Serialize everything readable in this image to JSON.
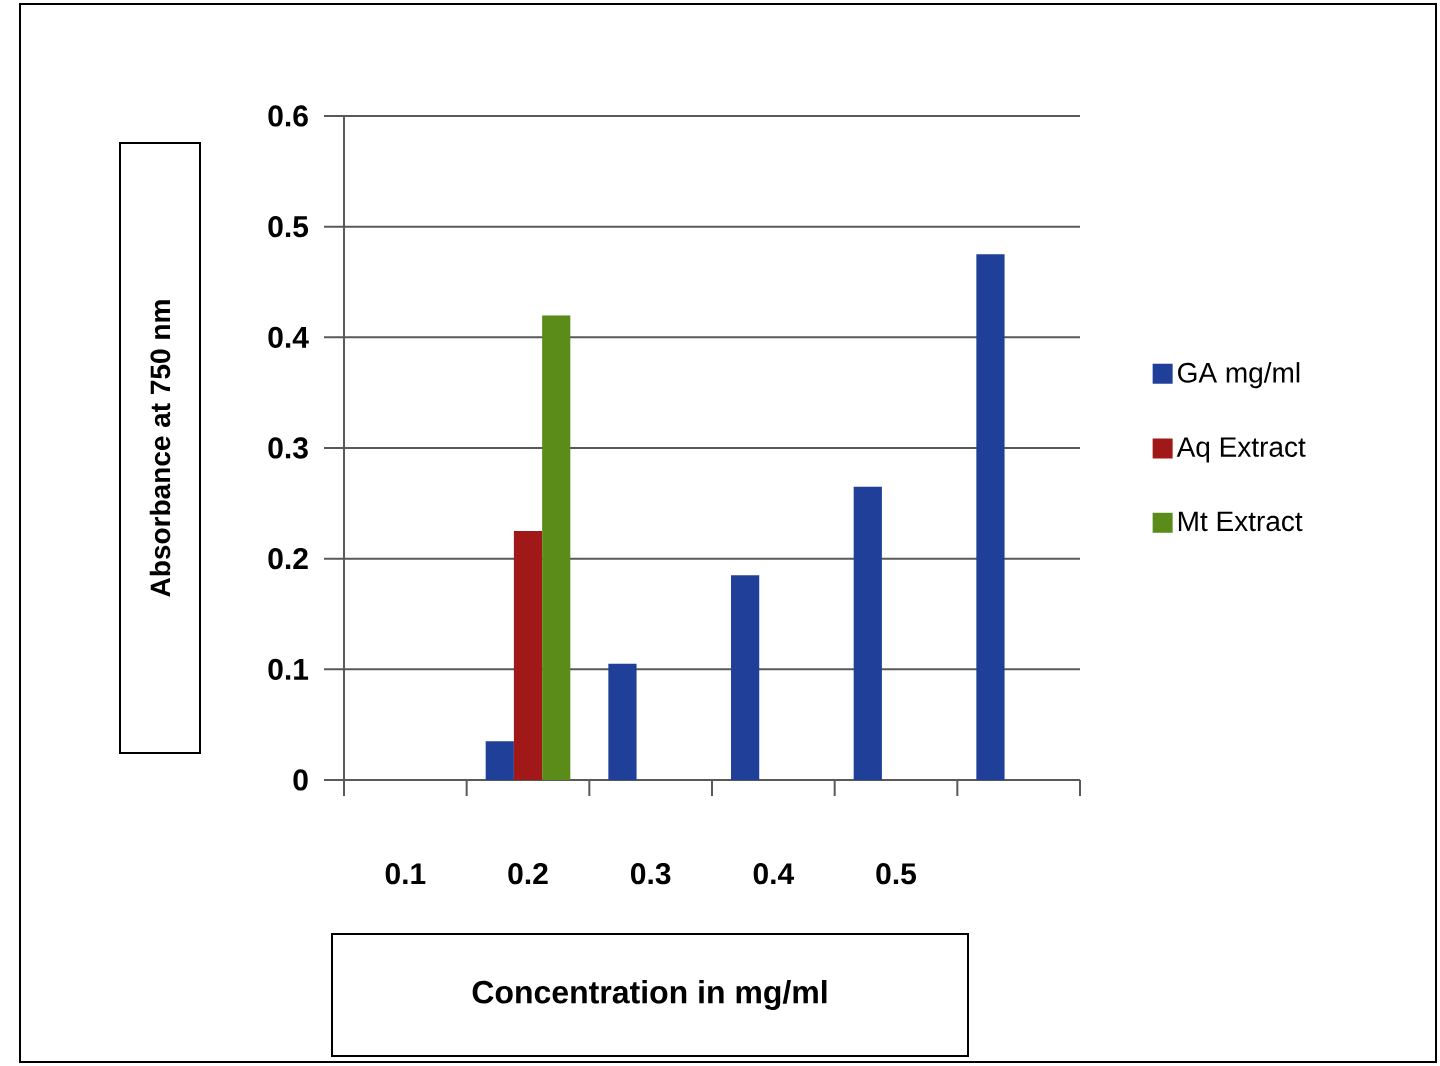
{
  "chart_data": {
    "type": "bar",
    "xlabel": "Concentration in mg/ml",
    "ylabel": "Absorbance at 750 nm",
    "categories": [
      "0.1",
      "0.2",
      "0.3",
      "0.4",
      "0.5",
      null
    ],
    "series": [
      {
        "name": "GA mg/ml",
        "color": "#1f3f99",
        "values": [
          null,
          0.035,
          0.105,
          0.185,
          0.265,
          0.475
        ]
      },
      {
        "name": "Aq Extract",
        "color": "#a01818",
        "values": [
          null,
          0.225,
          null,
          null,
          null,
          null
        ]
      },
      {
        "name": "Mt Extract",
        "color": "#5b8c1a",
        "values": [
          null,
          0.42,
          null,
          null,
          null,
          null
        ]
      }
    ],
    "ylim": [
      0,
      0.6
    ],
    "yticks": [
      0,
      0.1,
      0.2,
      0.3,
      0.4,
      0.5,
      0.6
    ],
    "grid": "y",
    "legend": "right"
  }
}
